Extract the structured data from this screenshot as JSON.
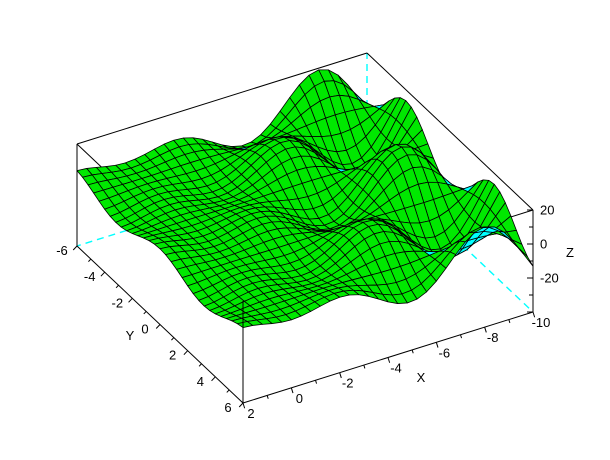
{
  "window": {
    "background": "#ffffff"
  },
  "chart_data": {
    "type": "surface3d",
    "title": "",
    "legend": null,
    "grid": false,
    "axes": {
      "x": {
        "label": "X",
        "range": [
          -10,
          2
        ],
        "major_ticks": [
          {
            "v": 2,
            "label": "2"
          },
          {
            "v": 0,
            "label": "0"
          },
          {
            "v": -2,
            "label": "-2"
          },
          {
            "v": -4,
            "label": "-4"
          },
          {
            "v": -6,
            "label": "-6"
          },
          {
            "v": -8,
            "label": "-8"
          },
          {
            "v": -10,
            "label": "-10"
          }
        ],
        "minor_ticks": [
          1,
          -1,
          -3,
          -5,
          -7,
          -9
        ]
      },
      "y": {
        "label": "Y",
        "range": [
          -6,
          6
        ],
        "major_ticks": [
          {
            "v": -6,
            "label": "-6"
          },
          {
            "v": -4,
            "label": "-4"
          },
          {
            "v": -2,
            "label": "-2"
          },
          {
            "v": 0,
            "label": "0"
          },
          {
            "v": 2,
            "label": "2"
          },
          {
            "v": 4,
            "label": "4"
          },
          {
            "v": 6,
            "label": "6"
          }
        ],
        "minor_ticks": [
          -5,
          -3,
          -1,
          1,
          3,
          5
        ]
      },
      "z": {
        "label": "Z",
        "range": [
          -40,
          20
        ],
        "major_ticks": [
          {
            "v": 20,
            "label": "20"
          },
          {
            "v": 0,
            "label": "0"
          },
          {
            "v": -20,
            "label": "-20"
          },
          {
            "v": -40,
            "label": ""
          }
        ],
        "minor_ticks": [
          10,
          -10,
          -30
        ]
      }
    },
    "surface": {
      "formula": "z = 2.5 * x * sin(x) * cos(y)",
      "amplitude": 2.5,
      "x_range": [
        -10,
        2
      ],
      "y_range": [
        -6,
        6
      ],
      "grid_step": 0.4,
      "top_color": "#00e800",
      "bottom_color": "#00ffff",
      "mesh_color": "#000000"
    },
    "box": {
      "edge_color": "#000000",
      "hidden_edge_color": "#00ffff",
      "hidden_edge_dash": "7 5"
    },
    "colors": {
      "background": "#ffffff",
      "text": "#000000"
    }
  }
}
